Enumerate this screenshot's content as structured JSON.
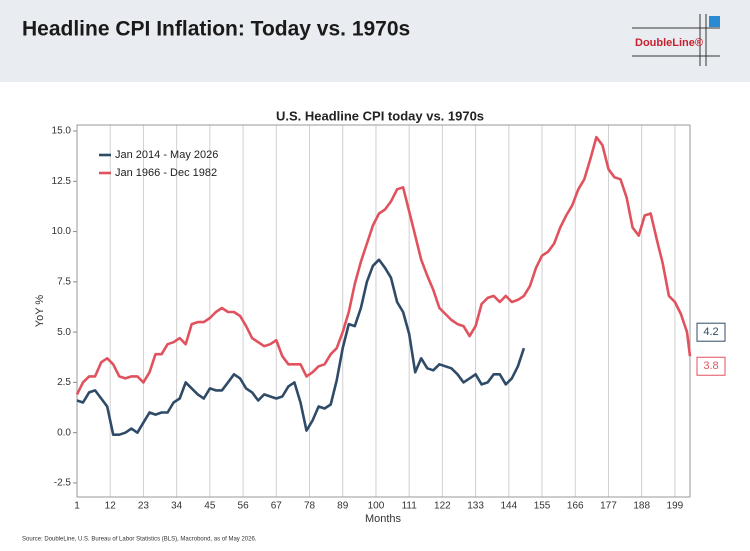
{
  "header": {
    "title": "Headline CPI Inflation: Today vs. 1970s",
    "logo": "DoubleLine®"
  },
  "footer": {
    "source": "Source: DoubleLine, U.S. Bureau of Labor Statistics (BLS), Macrobond, as of May 2026."
  },
  "chart_data": {
    "type": "line",
    "title": "U.S. Headline CPI today vs. 1970s",
    "x_label": "Months",
    "y_label": "YoY %",
    "x": [
      1,
      3,
      5,
      7,
      9,
      11,
      13,
      15,
      17,
      19,
      21,
      23,
      25,
      27,
      29,
      31,
      33,
      35,
      37,
      39,
      41,
      43,
      45,
      47,
      49,
      51,
      53,
      55,
      57,
      59,
      61,
      63,
      65,
      67,
      69,
      71,
      73,
      75,
      77,
      79,
      81,
      83,
      85,
      87,
      89,
      91,
      93,
      95,
      97,
      99,
      101,
      103,
      105,
      107,
      109,
      111,
      113,
      115,
      117,
      119,
      121,
      123,
      125,
      127,
      129,
      131,
      133,
      135,
      137,
      139,
      141,
      143,
      145,
      147,
      149,
      151,
      153,
      155,
      157,
      159,
      161,
      163,
      165,
      167,
      169,
      171,
      173,
      175,
      177,
      179,
      181,
      183,
      185,
      187,
      189,
      191,
      193,
      195,
      197,
      199,
      201,
      203,
      204
    ],
    "series": [
      {
        "name": "Jan 2014 - May 2026",
        "color": "#2f4b68",
        "values": [
          1.6,
          1.5,
          2.0,
          2.1,
          1.7,
          1.3,
          -0.1,
          -0.1,
          0.0,
          0.2,
          0.0,
          0.5,
          1.0,
          0.9,
          1.0,
          1.0,
          1.5,
          1.7,
          2.5,
          2.2,
          1.9,
          1.7,
          2.2,
          2.1,
          2.1,
          2.5,
          2.9,
          2.7,
          2.2,
          2.0,
          1.6,
          1.9,
          1.8,
          1.7,
          1.8,
          2.3,
          2.5,
          1.5,
          0.1,
          0.6,
          1.3,
          1.2,
          1.4,
          2.6,
          4.2,
          5.4,
          5.3,
          6.2,
          7.5,
          8.3,
          8.6,
          8.2,
          7.7,
          6.5,
          6.0,
          4.9,
          3.0,
          3.7,
          3.2,
          3.1,
          3.4,
          3.3,
          3.2,
          2.9,
          2.5,
          2.7,
          2.9,
          2.4,
          2.5,
          2.9,
          2.9,
          2.4,
          2.7,
          3.3,
          4.2,
          null,
          null,
          null,
          null,
          null,
          null,
          null,
          null,
          null,
          null,
          null,
          null,
          null,
          null,
          null,
          null,
          null,
          null,
          null,
          null,
          null,
          null,
          null,
          null,
          null,
          null,
          null,
          null
        ]
      },
      {
        "name": "Jan 1966 - Dec 1982",
        "color": "#e0525e",
        "values": [
          1.9,
          2.5,
          2.8,
          2.8,
          3.5,
          3.7,
          3.4,
          2.8,
          2.7,
          2.8,
          2.8,
          2.5,
          3.0,
          3.9,
          3.9,
          4.4,
          4.5,
          4.7,
          4.4,
          5.4,
          5.5,
          5.5,
          5.7,
          6.0,
          6.2,
          6.0,
          6.0,
          5.8,
          5.3,
          4.7,
          4.5,
          4.3,
          4.4,
          4.6,
          3.8,
          3.4,
          3.4,
          3.4,
          2.8,
          3.0,
          3.3,
          3.4,
          3.9,
          4.2,
          5.0,
          6.0,
          7.4,
          8.5,
          9.4,
          10.3,
          10.9,
          11.1,
          11.5,
          12.1,
          12.2,
          11.0,
          9.8,
          8.6,
          7.8,
          7.1,
          6.2,
          5.9,
          5.6,
          5.4,
          5.3,
          4.8,
          5.3,
          6.4,
          6.7,
          6.8,
          6.5,
          6.8,
          6.5,
          6.6,
          6.8,
          7.3,
          8.2,
          8.8,
          9.0,
          9.4,
          10.2,
          10.8,
          11.3,
          12.1,
          12.6,
          13.6,
          14.7,
          14.3,
          13.1,
          12.7,
          12.6,
          11.7,
          10.2,
          9.8,
          10.8,
          10.9,
          9.6,
          8.4,
          6.8,
          6.5,
          5.9,
          5.0,
          3.8
        ]
      }
    ],
    "xlim": [
      1,
      204
    ],
    "xticks": [
      1,
      12,
      23,
      34,
      45,
      56,
      67,
      78,
      89,
      100,
      111,
      122,
      133,
      144,
      155,
      166,
      177,
      188,
      199
    ],
    "ylim": [
      -3.2,
      15.3
    ],
    "yticks": [
      {
        "value": -2.5,
        "label": "-2.5"
      },
      {
        "value": 0,
        "label": "0.0"
      },
      {
        "value": 2.5,
        "label": "2.5"
      },
      {
        "value": 5,
        "label": "5.0"
      },
      {
        "value": 7.5,
        "label": "7.5"
      },
      {
        "value": 10,
        "label": "10.0"
      },
      {
        "value": 12.5,
        "label": "12.5"
      },
      {
        "value": 15,
        "label": "15.0"
      }
    ],
    "grid": "x",
    "legend": "upper left"
  }
}
